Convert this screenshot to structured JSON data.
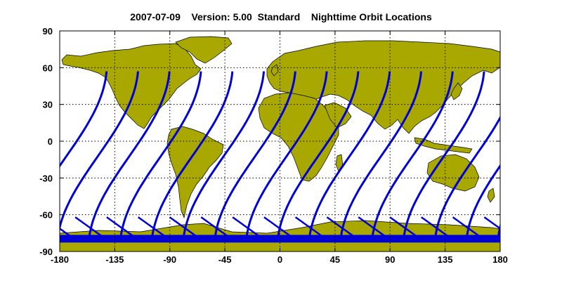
{
  "header": {
    "date": "2007-07-09",
    "version": "Version: 5.00",
    "mode": "Standard",
    "subtitle": "Nighttime Orbit Locations"
  },
  "map": {
    "lon_ticks": [
      "-180",
      "-135",
      "-90",
      "-45",
      "0",
      "45",
      "90",
      "135",
      "180"
    ],
    "lat_ticks": [
      "90",
      "60",
      "30",
      "0",
      "-30",
      "-60",
      "-90"
    ],
    "lon_range": [
      -180,
      180
    ],
    "lat_range": [
      -90,
      90
    ],
    "grid": true,
    "colors": {
      "land": "#a8a800",
      "orbit": "#0000d8",
      "coast": "#000000"
    }
  },
  "orbits": {
    "track_count": 15,
    "lat_max": 57,
    "lat_min": -82
  }
}
